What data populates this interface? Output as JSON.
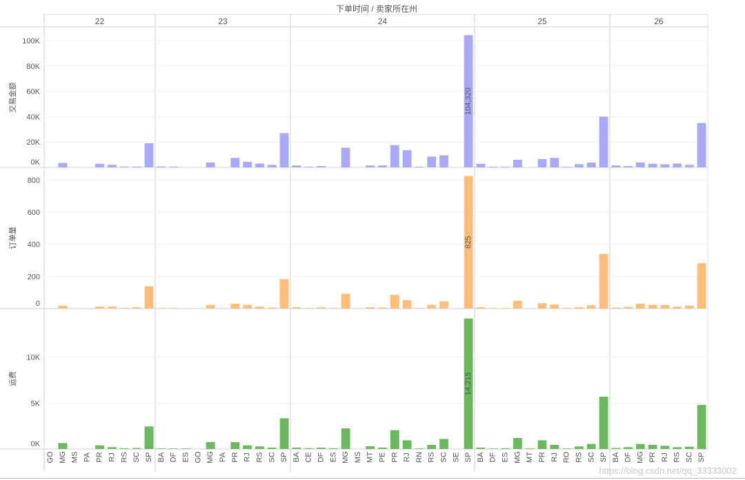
{
  "header": {
    "title": "下单时间 / 卖家所在州",
    "title_separator": "/"
  },
  "watermark": "https://blog.csdn.net/qq_33333002",
  "chart_data": {
    "type": "bar",
    "title": "下单时间 / 卖家所在州",
    "columns": [
      {
        "label": "22",
        "categories": [
          "GO",
          "MG",
          "MS",
          "PA",
          "PR",
          "RJ",
          "RS",
          "SC",
          "SP"
        ]
      },
      {
        "label": "23",
        "categories": [
          "BA",
          "DF",
          "ES",
          "GO",
          "MG",
          "PA",
          "PR",
          "RJ",
          "RS",
          "SC",
          "SP"
        ]
      },
      {
        "label": "24",
        "categories": [
          "BA",
          "CE",
          "DF",
          "ES",
          "MG",
          "MS",
          "MT",
          "PE",
          "PR",
          "RJ",
          "RN",
          "RS",
          "SC",
          "SE",
          "SP"
        ]
      },
      {
        "label": "25",
        "categories": [
          "BA",
          "DF",
          "ES",
          "MG",
          "MT",
          "PR",
          "RJ",
          "RO",
          "RS",
          "SC",
          "SP"
        ]
      },
      {
        "label": "26",
        "categories": [
          "BA",
          "DF",
          "MG",
          "PR",
          "RJ",
          "RS",
          "SC",
          "SP"
        ]
      }
    ],
    "rows": [
      {
        "measure": "交易金额",
        "color": "#a9aaf7",
        "ylim": [
          0,
          106000
        ],
        "ticks": [
          0,
          20000,
          40000,
          60000,
          80000,
          100000
        ],
        "tick_labels": [
          "0K",
          "20K",
          "40K",
          "60K",
          "80K",
          "100K"
        ],
        "values": [
          [
            0,
            3500,
            0,
            0,
            2800,
            2000,
            600,
            600,
            19000
          ],
          [
            700,
            500,
            0,
            0,
            3800,
            0,
            7500,
            4300,
            3000,
            2000,
            27000
          ],
          [
            1500,
            500,
            1000,
            0,
            15500,
            0,
            1500,
            1500,
            17500,
            13500,
            500,
            8500,
            9500,
            0,
            104320
          ],
          [
            2800,
            500,
            500,
            6000,
            0,
            6500,
            7500,
            500,
            2500,
            3800,
            40000
          ],
          [
            1500,
            1000,
            3800,
            2800,
            2500,
            3000,
            2000,
            35000
          ]
        ],
        "data_label": {
          "column": 2,
          "index": 14,
          "text": "104,320"
        }
      },
      {
        "measure": "订单量",
        "color": "#ffbd7b",
        "ylim": [
          0,
          840
        ],
        "ticks": [
          0,
          200,
          400,
          600,
          800
        ],
        "tick_labels": [
          "0",
          "200",
          "400",
          "600",
          "800"
        ],
        "values": [
          [
            0,
            18,
            0,
            0,
            12,
            12,
            4,
            8,
            138
          ],
          [
            3,
            3,
            0,
            0,
            22,
            0,
            30,
            22,
            12,
            6,
            183
          ],
          [
            8,
            3,
            8,
            3,
            92,
            0,
            8,
            6,
            85,
            52,
            3,
            22,
            45,
            0,
            825
          ],
          [
            8,
            3,
            3,
            48,
            0,
            33,
            25,
            3,
            8,
            20,
            340
          ],
          [
            6,
            10,
            30,
            23,
            22,
            12,
            18,
            282
          ]
        ],
        "data_label": {
          "column": 2,
          "index": 14,
          "text": "825"
        }
      },
      {
        "measure": "运费",
        "color": "#6bb85f",
        "ylim": [
          0,
          14700
        ],
        "ticks": [
          0,
          5000,
          10000
        ],
        "tick_labels": [
          "0K",
          "5K",
          "10K"
        ],
        "values": [
          [
            0,
            650,
            0,
            0,
            400,
            200,
            80,
            100,
            2450
          ],
          [
            60,
            60,
            60,
            0,
            750,
            0,
            750,
            400,
            280,
            150,
            3350
          ],
          [
            150,
            80,
            150,
            80,
            2250,
            0,
            300,
            150,
            2050,
            950,
            60,
            450,
            1100,
            0,
            14215
          ],
          [
            150,
            60,
            80,
            1200,
            60,
            950,
            450,
            60,
            280,
            550,
            5700
          ],
          [
            100,
            200,
            550,
            450,
            350,
            200,
            250,
            4800
          ]
        ],
        "data_label": {
          "column": 2,
          "index": 14,
          "text": "14,215"
        }
      }
    ]
  }
}
